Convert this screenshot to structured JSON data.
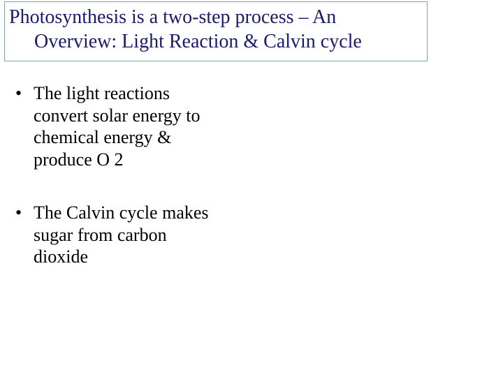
{
  "title": {
    "line1": "Photosynthesis is a two-step process – An",
    "line2": "Overview: Light Reaction & Calvin cycle",
    "color": "#1a1a6a",
    "border_color": "#7fa89a",
    "fontsize": 28
  },
  "bullets": [
    {
      "marker": "•",
      "text": "The light reactions convert solar energy to chemical energy & produce O 2"
    },
    {
      "marker": "•",
      "text": "The Calvin cycle makes sugar from carbon dioxide"
    }
  ],
  "body_fontsize": 26,
  "body_color": "#000000",
  "background_color": "#ffffff"
}
